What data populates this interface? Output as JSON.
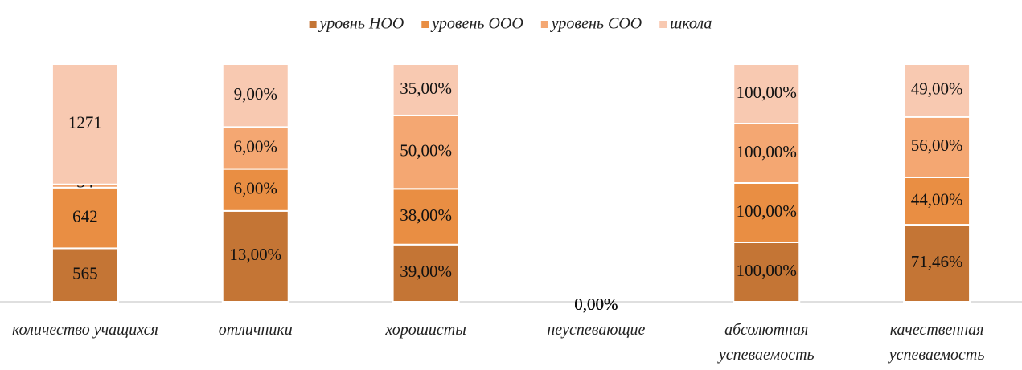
{
  "chart_data": {
    "type": "bar",
    "stacked": "percent",
    "legend_position": "top",
    "categories": [
      "количество учащихся",
      "отличники",
      "хорошисты",
      "неуспевающие",
      "абсолютная успеваемость",
      "качественная успеваемость"
    ],
    "series": [
      {
        "name": "уровнь НОО",
        "color": "#c47535",
        "values": [
          565,
          13,
          39,
          0,
          100,
          71.46
        ],
        "value_labels": [
          "565",
          "13,00%",
          "39,00%",
          "0,00%",
          "100,00%",
          "71,46%"
        ]
      },
      {
        "name": "уровень ООО",
        "color": "#e98e43",
        "values": [
          642,
          6,
          38,
          0,
          100,
          44
        ],
        "value_labels": [
          "642",
          "6,00%",
          "38,00%",
          "0,00%",
          "100,00%",
          "44,00%"
        ]
      },
      {
        "name": "уровень СОО",
        "color": "#f4a772",
        "values": [
          34,
          6,
          50,
          0,
          100,
          56
        ],
        "value_labels": [
          "34",
          "6,00%",
          "50,00%",
          "0,00%",
          "100,00%",
          "56,00%"
        ]
      },
      {
        "name": "школа",
        "color": "#f8c9b1",
        "values": [
          1271,
          9,
          35,
          0,
          100,
          49
        ],
        "value_labels": [
          "1271",
          "9,00%",
          "35,00%",
          "0,00%",
          "100,00%",
          "49,00%"
        ]
      }
    ]
  }
}
